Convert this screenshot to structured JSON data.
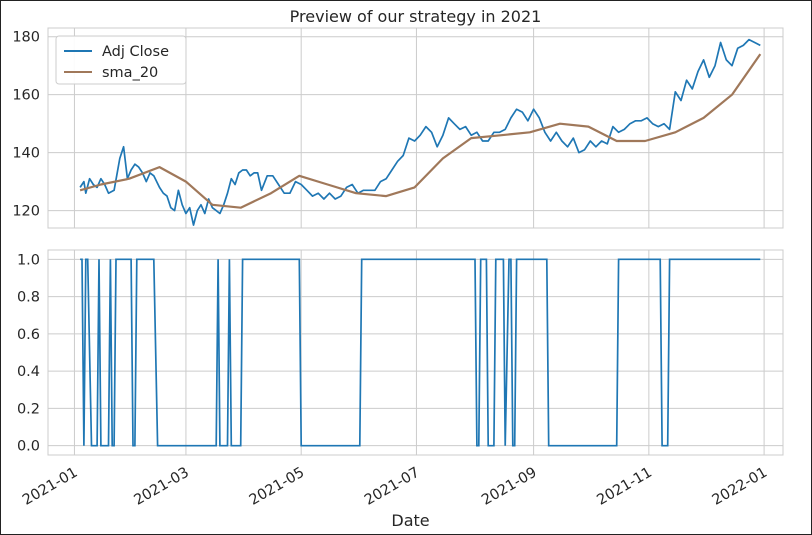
{
  "chart_data": [
    {
      "type": "line",
      "title": "Preview of our strategy in 2021",
      "xlabel": "",
      "ylabel": "",
      "ylim": [
        114,
        183
      ],
      "yticks": [
        120,
        140,
        160,
        180
      ],
      "grid": true,
      "legend_position": "top-left",
      "series": [
        {
          "name": "Adj Close",
          "color": "#1f77b4",
          "x": [
            "2021-01-04",
            "2021-01-06",
            "2021-01-07",
            "2021-01-09",
            "2021-01-11",
            "2021-01-13",
            "2021-01-15",
            "2021-01-17",
            "2021-01-19",
            "2021-01-22",
            "2021-01-25",
            "2021-01-27",
            "2021-01-29",
            "2021-01-31",
            "2021-02-02",
            "2021-02-04",
            "2021-02-06",
            "2021-02-08",
            "2021-02-10",
            "2021-02-12",
            "2021-02-15",
            "2021-02-17",
            "2021-02-19",
            "2021-02-21",
            "2021-02-23",
            "2021-02-25",
            "2021-02-27",
            "2021-03-01",
            "2021-03-03",
            "2021-03-05",
            "2021-03-07",
            "2021-03-09",
            "2021-03-11",
            "2021-03-13",
            "2021-03-15",
            "2021-03-17",
            "2021-03-19",
            "2021-03-21",
            "2021-03-23",
            "2021-03-25",
            "2021-03-27",
            "2021-03-29",
            "2021-03-31",
            "2021-04-02",
            "2021-04-04",
            "2021-04-06",
            "2021-04-08",
            "2021-04-10",
            "2021-04-13",
            "2021-04-16",
            "2021-04-19",
            "2021-04-22",
            "2021-04-25",
            "2021-04-28",
            "2021-05-01",
            "2021-05-04",
            "2021-05-07",
            "2021-05-10",
            "2021-05-13",
            "2021-05-16",
            "2021-05-19",
            "2021-05-22",
            "2021-05-25",
            "2021-05-28",
            "2021-05-31",
            "2021-06-03",
            "2021-06-06",
            "2021-06-09",
            "2021-06-12",
            "2021-06-15",
            "2021-06-18",
            "2021-06-21",
            "2021-06-24",
            "2021-06-27",
            "2021-06-30",
            "2021-07-03",
            "2021-07-06",
            "2021-07-09",
            "2021-07-12",
            "2021-07-15",
            "2021-07-18",
            "2021-07-21",
            "2021-07-24",
            "2021-07-27",
            "2021-07-30",
            "2021-08-02",
            "2021-08-05",
            "2021-08-08",
            "2021-08-11",
            "2021-08-14",
            "2021-08-17",
            "2021-08-20",
            "2021-08-23",
            "2021-08-26",
            "2021-08-29",
            "2021-09-01",
            "2021-09-04",
            "2021-09-07",
            "2021-09-10",
            "2021-09-13",
            "2021-09-16",
            "2021-09-19",
            "2021-09-22",
            "2021-09-25",
            "2021-09-28",
            "2021-10-01",
            "2021-10-04",
            "2021-10-07",
            "2021-10-10",
            "2021-10-13",
            "2021-10-16",
            "2021-10-19",
            "2021-10-22",
            "2021-10-25",
            "2021-10-28",
            "2021-10-31",
            "2021-11-03",
            "2021-11-06",
            "2021-11-09",
            "2021-11-12",
            "2021-11-15",
            "2021-11-18",
            "2021-11-21",
            "2021-11-24",
            "2021-11-27",
            "2021-11-30",
            "2021-12-03",
            "2021-12-06",
            "2021-12-09",
            "2021-12-12",
            "2021-12-15",
            "2021-12-18",
            "2021-12-21",
            "2021-12-24",
            "2021-12-27",
            "2021-12-30"
          ],
          "values": [
            128,
            130,
            126,
            131,
            129,
            128,
            131,
            129,
            126,
            127,
            138,
            142,
            131,
            134,
            136,
            135,
            133,
            130,
            133,
            132,
            128,
            126,
            125,
            121,
            120,
            127,
            122,
            119,
            121,
            115,
            120,
            122,
            119,
            124,
            121,
            120,
            119,
            122,
            126,
            131,
            129,
            133,
            134,
            134,
            132,
            133,
            133,
            127,
            132,
            132,
            129,
            126,
            126,
            130,
            129,
            127,
            125,
            126,
            124,
            126,
            124,
            125,
            128,
            129,
            126,
            127,
            127,
            127,
            130,
            131,
            134,
            137,
            139,
            145,
            144,
            146,
            149,
            147,
            142,
            146,
            152,
            150,
            148,
            149,
            146,
            147,
            144,
            144,
            147,
            147,
            148,
            152,
            155,
            154,
            151,
            155,
            152,
            147,
            144,
            147,
            144,
            142,
            145,
            140,
            141,
            144,
            142,
            144,
            143,
            149,
            147,
            148,
            150,
            151,
            151,
            152,
            150,
            149,
            150,
            148,
            161,
            158,
            165,
            162,
            168,
            172,
            166,
            170,
            178,
            172,
            170,
            176,
            177,
            179,
            178,
            177
          ],
          "comment": ""
        },
        {
          "name": "sma_20",
          "color": "#a0785a",
          "x": [
            "2021-01-04",
            "2021-01-15",
            "2021-01-30",
            "2021-02-15",
            "2021-03-01",
            "2021-03-15",
            "2021-03-30",
            "2021-04-15",
            "2021-04-30",
            "2021-05-15",
            "2021-05-30",
            "2021-06-15",
            "2021-06-30",
            "2021-07-15",
            "2021-07-30",
            "2021-08-15",
            "2021-08-30",
            "2021-09-15",
            "2021-09-30",
            "2021-10-15",
            "2021-10-30",
            "2021-11-15",
            "2021-11-30",
            "2021-12-15",
            "2021-12-30"
          ],
          "values": [
            127,
            129,
            131,
            135,
            130,
            122,
            121,
            126,
            132,
            129,
            126,
            125,
            128,
            138,
            145,
            146,
            147,
            150,
            149,
            144,
            144,
            147,
            152,
            160,
            174
          ]
        }
      ]
    },
    {
      "type": "line",
      "xlabel": "Date",
      "ylabel": "",
      "ylim": [
        -0.05,
        1.05
      ],
      "yticks": [
        "0.0",
        "0.2",
        "0.4",
        "0.6",
        "0.8",
        "1.0"
      ],
      "xticks": [
        "2021-01",
        "2021-03",
        "2021-05",
        "2021-07",
        "2021-09",
        "2021-11",
        "2022-01"
      ],
      "grid": true,
      "series": [
        {
          "color": "#1f77b4",
          "step_points": [
            [
              "2021-01-04",
              1
            ],
            [
              "2021-01-05",
              1
            ],
            [
              "2021-01-06",
              0
            ],
            [
              "2021-01-07",
              1
            ],
            [
              "2021-01-08",
              1
            ],
            [
              "2021-01-10",
              0
            ],
            [
              "2021-01-11",
              0
            ],
            [
              "2021-01-13",
              0
            ],
            [
              "2021-01-14",
              1
            ],
            [
              "2021-01-15",
              0
            ],
            [
              "2021-01-19",
              0
            ],
            [
              "2021-01-20",
              1
            ],
            [
              "2021-01-21",
              0
            ],
            [
              "2021-01-22",
              0
            ],
            [
              "2021-01-23",
              1
            ],
            [
              "2021-01-31",
              1
            ],
            [
              "2021-02-01",
              0
            ],
            [
              "2021-02-02",
              0
            ],
            [
              "2021-02-03",
              1
            ],
            [
              "2021-02-12",
              1
            ],
            [
              "2021-02-14",
              0
            ],
            [
              "2021-03-17",
              0
            ],
            [
              "2021-03-18",
              1
            ],
            [
              "2021-03-19",
              0
            ],
            [
              "2021-03-23",
              0
            ],
            [
              "2021-03-24",
              1
            ],
            [
              "2021-03-25",
              0
            ],
            [
              "2021-03-30",
              0
            ],
            [
              "2021-03-31",
              1
            ],
            [
              "2021-04-30",
              1
            ],
            [
              "2021-05-01",
              0
            ],
            [
              "2021-06-01",
              0
            ],
            [
              "2021-06-02",
              1
            ],
            [
              "2021-08-01",
              1
            ],
            [
              "2021-08-02",
              0
            ],
            [
              "2021-08-03",
              0
            ],
            [
              "2021-08-04",
              1
            ],
            [
              "2021-08-07",
              1
            ],
            [
              "2021-08-08",
              0
            ],
            [
              "2021-08-11",
              0
            ],
            [
              "2021-08-12",
              1
            ],
            [
              "2021-08-16",
              1
            ],
            [
              "2021-08-17",
              0
            ],
            [
              "2021-08-19",
              1
            ],
            [
              "2021-08-20",
              1
            ],
            [
              "2021-08-21",
              0
            ],
            [
              "2021-08-22",
              0
            ],
            [
              "2021-08-23",
              1
            ],
            [
              "2021-09-08",
              1
            ],
            [
              "2021-09-09",
              0
            ],
            [
              "2021-10-15",
              0
            ],
            [
              "2021-10-16",
              1
            ],
            [
              "2021-11-07",
              1
            ],
            [
              "2021-11-08",
              0
            ],
            [
              "2021-11-11",
              0
            ],
            [
              "2021-11-12",
              1
            ],
            [
              "2021-12-30",
              1
            ]
          ]
        }
      ]
    }
  ]
}
